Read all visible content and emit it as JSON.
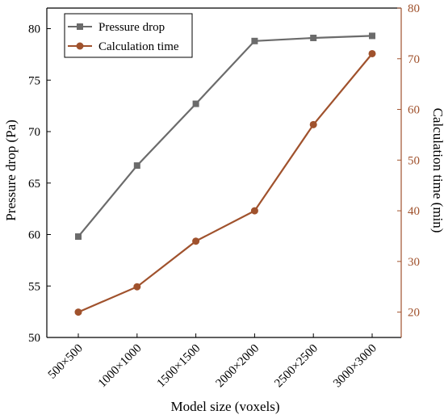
{
  "chart_data": {
    "type": "line",
    "categories": [
      "500×500",
      "1000×1000",
      "1500×1500",
      "2000×2000",
      "2500×2500",
      "3000×3000"
    ],
    "xlabel": "Model size (voxels)",
    "y_left": {
      "label": "Pressure drop (Pa)",
      "ylim": [
        50,
        82
      ],
      "ticks": [
        50,
        55,
        60,
        65,
        70,
        75,
        80
      ]
    },
    "y_right": {
      "label": "Calculation time (min)",
      "ylim": [
        15,
        80
      ],
      "ticks": [
        20,
        30,
        40,
        50,
        60,
        70,
        80
      ]
    },
    "series": [
      {
        "name": "Pressure drop",
        "axis": "left",
        "marker": "square",
        "color": "#6b6b6b",
        "values": [
          59.8,
          66.7,
          72.7,
          78.8,
          79.1,
          79.3
        ]
      },
      {
        "name": "Calculation time",
        "axis": "right",
        "marker": "circle",
        "color": "#a0522d",
        "values": [
          20,
          25,
          34,
          40,
          57,
          71
        ]
      }
    ],
    "legend": "top-left",
    "grid": false,
    "right_axis_color": "#a0522d"
  }
}
